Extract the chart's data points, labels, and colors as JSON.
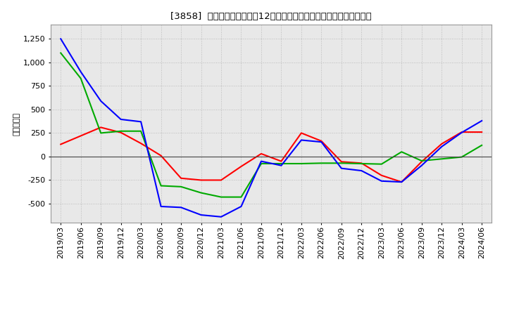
{
  "title": "[3858]  キャッシュフローの12か月移動合計の対前年同期増減額の推移",
  "ylabel": "（百万円）",
  "x_labels": [
    "2019/03",
    "2019/06",
    "2019/09",
    "2019/12",
    "2020/03",
    "2020/06",
    "2020/09",
    "2020/12",
    "2021/03",
    "2021/06",
    "2021/09",
    "2021/12",
    "2022/03",
    "2022/06",
    "2022/09",
    "2022/12",
    "2023/03",
    "2023/06",
    "2023/09",
    "2023/12",
    "2024/03",
    "2024/06"
  ],
  "operating_cf": [
    130,
    220,
    310,
    255,
    140,
    10,
    -230,
    -250,
    -250,
    -105,
    30,
    -50,
    250,
    165,
    -55,
    -70,
    -200,
    -270,
    -55,
    135,
    260,
    260
  ],
  "investing_cf": [
    1100,
    830,
    250,
    270,
    270,
    -310,
    -320,
    -385,
    -430,
    -430,
    -75,
    -75,
    -75,
    -70,
    -70,
    -75,
    -80,
    50,
    -45,
    -25,
    -5,
    120
  ],
  "free_cf": [
    1250,
    900,
    590,
    395,
    370,
    -530,
    -540,
    -620,
    -640,
    -530,
    -50,
    -95,
    175,
    155,
    -125,
    -150,
    -260,
    -270,
    -95,
    105,
    255,
    380
  ],
  "ylim": [
    -700,
    1400
  ],
  "yticks": [
    -500,
    -250,
    0,
    250,
    500,
    750,
    1000,
    1250
  ],
  "operating_color": "#ff0000",
  "investing_color": "#00aa00",
  "free_color": "#0000ff",
  "bg_color": "#ffffff",
  "plot_bg_color": "#e8e8e8",
  "grid_color": "#bbbbbb"
}
